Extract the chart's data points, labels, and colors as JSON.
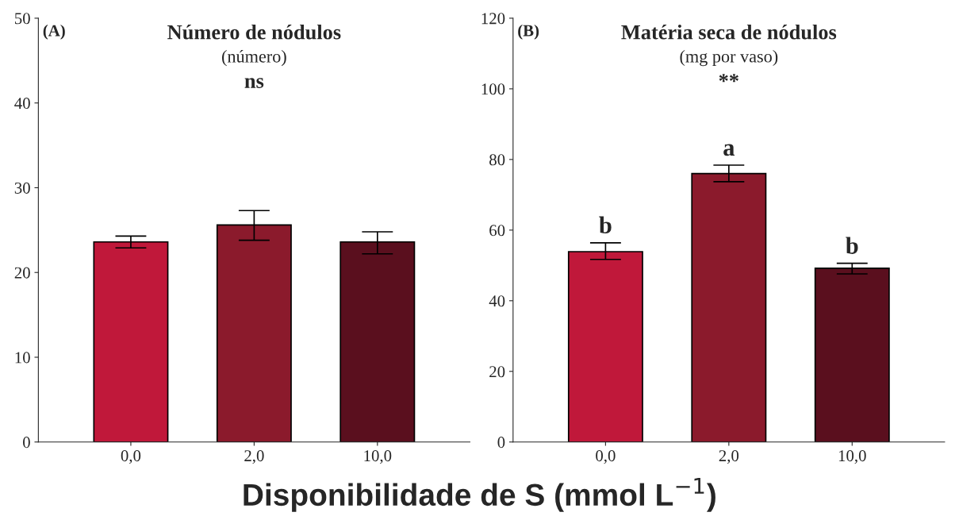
{
  "chart_data": [
    {
      "type": "bar",
      "title": "Número de nódulos",
      "subtitle": "(número)",
      "xlabel": "Disponibilidade de S (mmol L$^{−1}$)",
      "categories": [
        "0,0",
        "2,0",
        "10,0"
      ],
      "values": [
        23.6,
        25.6,
        23.6
      ],
      "errors": [
        [
          22.9,
          24.3
        ],
        [
          23.8,
          27.3
        ],
        [
          22.2,
          24.8
        ]
      ],
      "colors": [
        "#c0183a",
        "#8b1a2c",
        "#5a0f1e"
      ],
      "ylim": [
        0,
        50
      ],
      "yticks": [
        0,
        10,
        20,
        30,
        40,
        50
      ],
      "grid": false,
      "legend": false,
      "annotations": [
        "(A)",
        "ns"
      ]
    },
    {
      "type": "bar",
      "title": "Matéria seca de nódulos",
      "subtitle": "(mg por vaso)",
      "categories": [
        "0,0",
        "2,0",
        "10,0"
      ],
      "values": [
        53.9,
        76.0,
        49.2
      ],
      "errors": [
        [
          51.7,
          56.4
        ],
        [
          73.7,
          78.4
        ],
        [
          47.6,
          50.6
        ]
      ],
      "colors": [
        "#c0183a",
        "#8b1a2c",
        "#5a0f1e"
      ],
      "ylim": [
        0,
        120
      ],
      "yticks": [
        0,
        20,
        40,
        60,
        80,
        100,
        120
      ],
      "grid": false,
      "legend": false,
      "annotations": [
        "(B)",
        "**",
        {
          "text": "b",
          "x": "0,0",
          "y": 56.4
        },
        {
          "text": "a",
          "x": "2,0",
          "y": 78.4
        },
        {
          "text": "b",
          "x": "10,0",
          "y": 50.6
        }
      ]
    }
  ]
}
